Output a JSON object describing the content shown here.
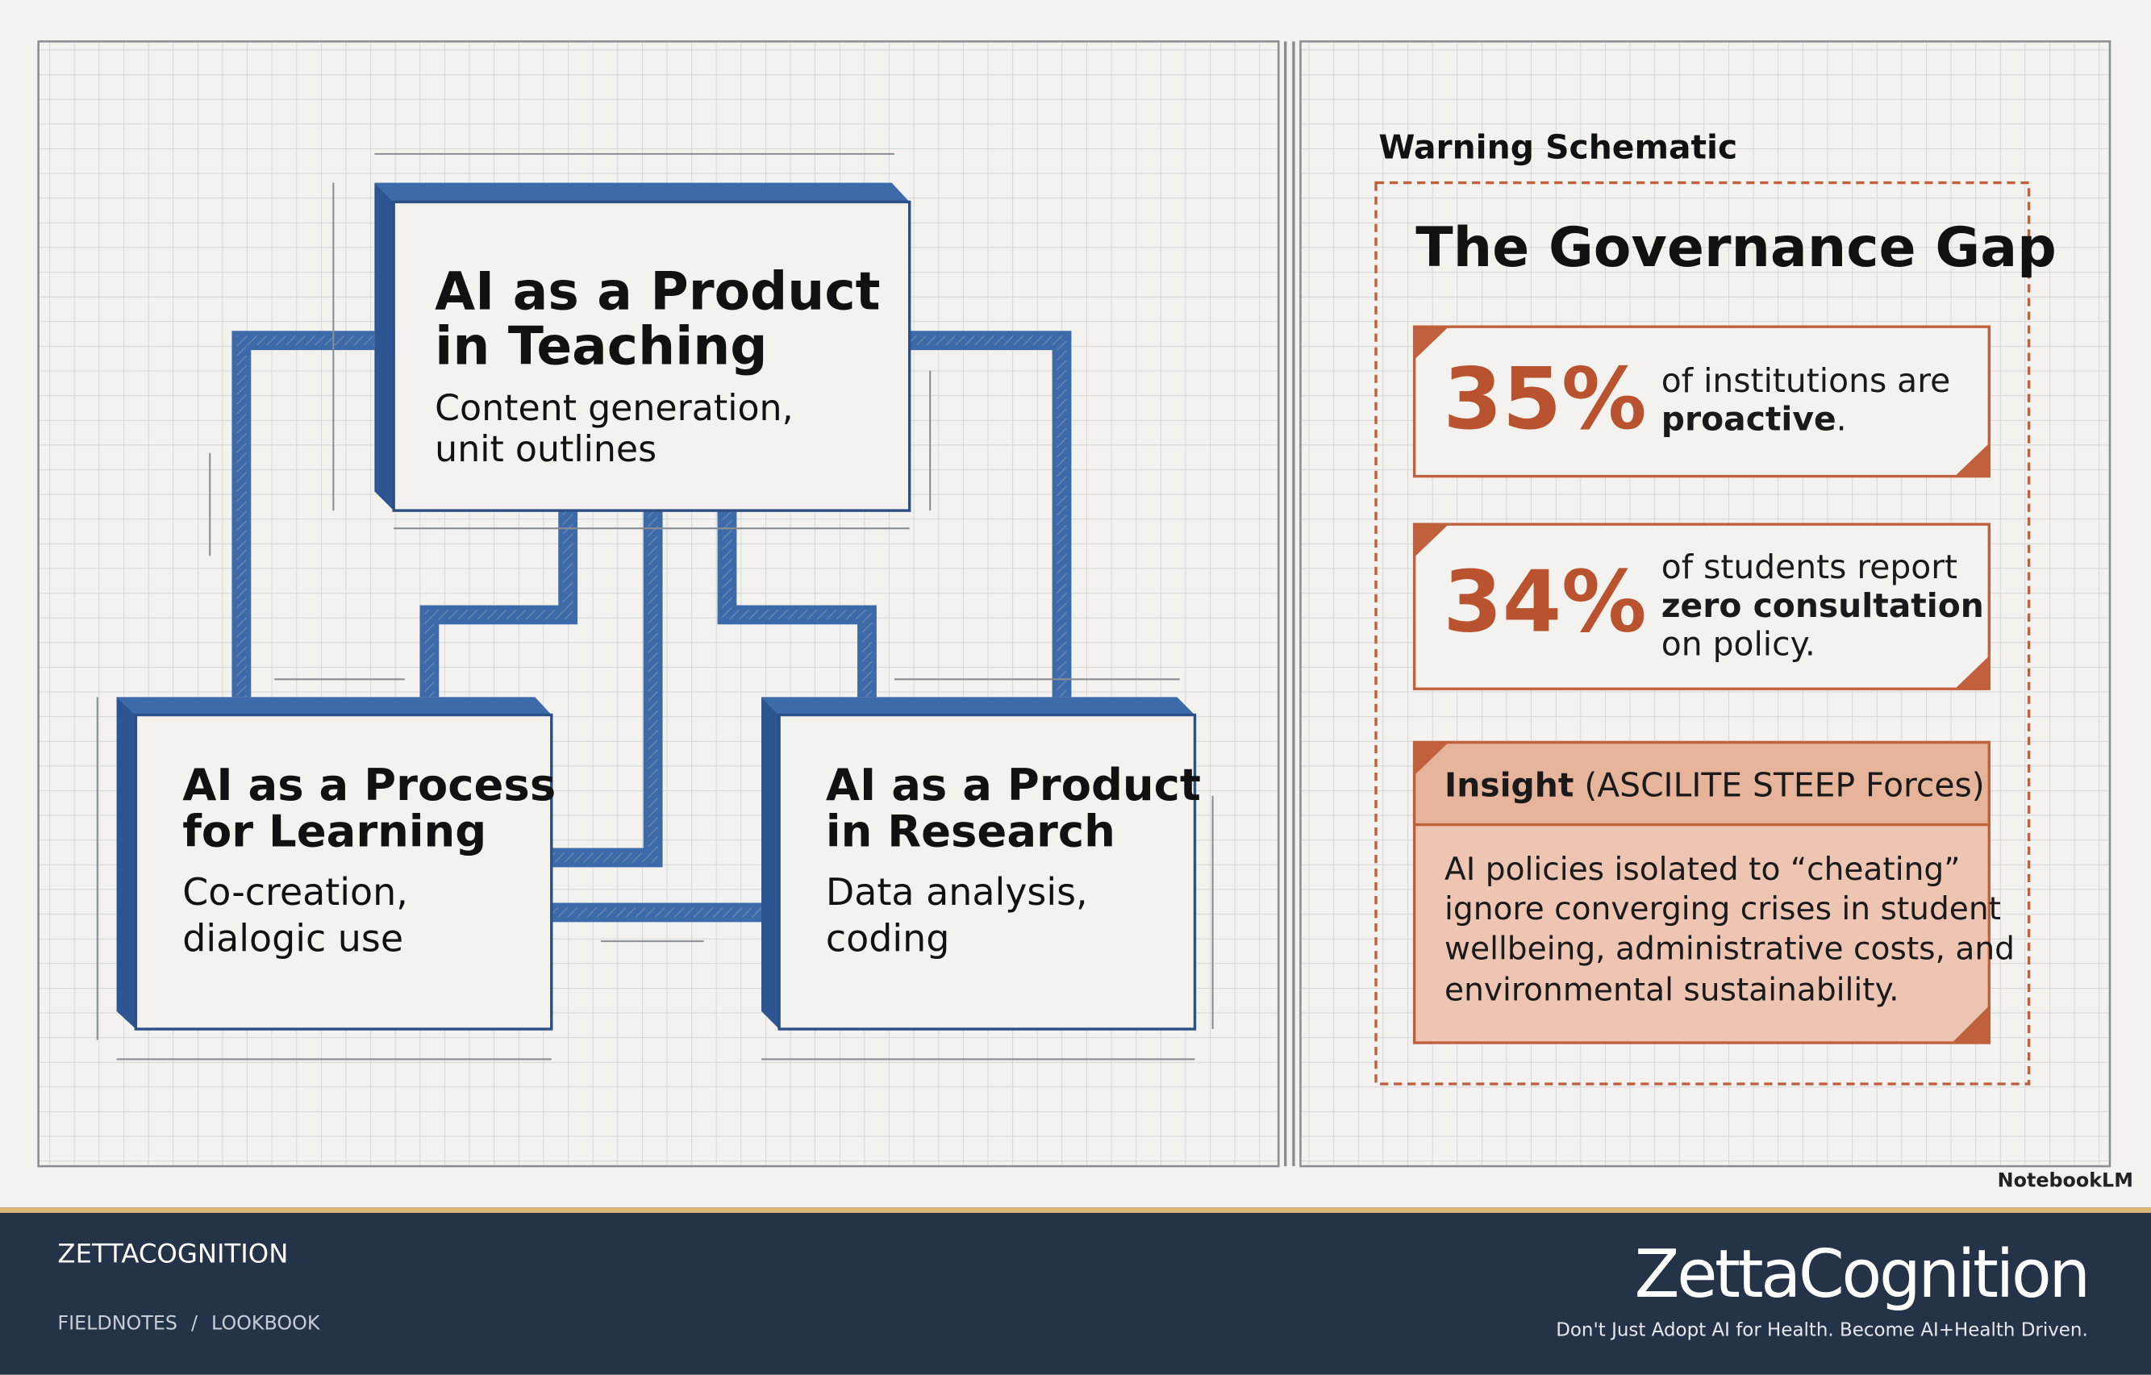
{
  "diagram": {
    "boxes": [
      {
        "title_lines": [
          "AI as a Product",
          "in Teaching"
        ],
        "subtitle_lines": [
          "Content generation,",
          "unit outlines"
        ]
      },
      {
        "title_lines": [
          "AI as a Process",
          "for Learning"
        ],
        "subtitle_lines": [
          "Co-creation,",
          "dialogic use"
        ]
      },
      {
        "title_lines": [
          "AI as a Product",
          "in Research"
        ],
        "subtitle_lines": [
          "Data analysis,",
          "coding"
        ]
      }
    ]
  },
  "panel": {
    "label": "Warning Schematic",
    "title": "The Governance Gap",
    "stats": [
      {
        "figure": "35%",
        "lines": [
          [
            "of institutions are"
          ],
          [
            "",
            "proactive",
            "."
          ]
        ]
      },
      {
        "figure": "34%",
        "lines": [
          [
            "of students report"
          ],
          [
            "",
            "zero consultation",
            ""
          ],
          [
            "on policy."
          ]
        ]
      }
    ],
    "insight": {
      "heading": "Insight",
      "source": " (ASCILITE STEEP Forces)",
      "lines": [
        "AI policies isolated to “cheating”",
        "ignore converging crises in student",
        "wellbeing, administrative costs, and",
        "environmental sustainability."
      ]
    }
  },
  "watermark": "NotebookLM",
  "footer": {
    "brand": "ZETTACOGNITION",
    "nav": [
      "FIELDNOTES",
      "/",
      "LOOKBOOK"
    ],
    "logo": "ZettaCognition",
    "tagline": "Don't Just Adopt AI for Health. Become AI+Health Driven."
  }
}
